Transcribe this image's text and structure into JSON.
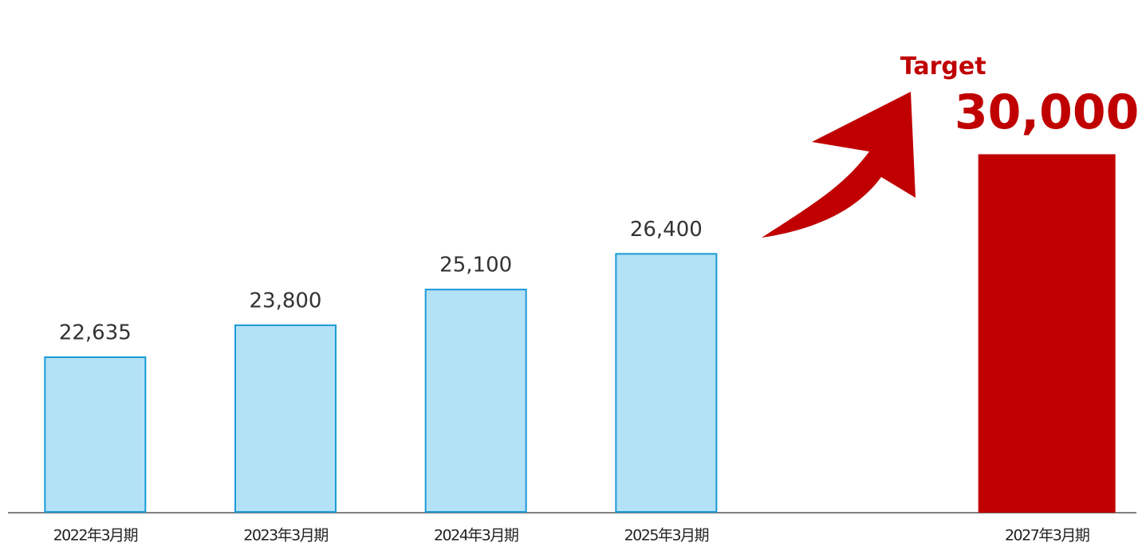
{
  "chart_data": {
    "type": "bar",
    "categories": [
      "2022年3月期",
      "2023年3月期",
      "2024年3月期",
      "2025年3月期",
      null,
      "2027年3月期"
    ],
    "values": [
      22635,
      23800,
      25100,
      26400,
      null,
      30000
    ],
    "value_labels": [
      "22,635",
      "23,800",
      "25,100",
      "26,400",
      null,
      "30,000"
    ],
    "colors": [
      "#b3e1f6",
      "#b3e1f6",
      "#b3e1f6",
      "#b3e1f6",
      null,
      "#c00000"
    ],
    "edge_colors": [
      "#1a9ad6",
      "#1a9ad6",
      "#1a9ad6",
      "#1a9ad6",
      null,
      "#c00000"
    ],
    "annotation": "Target",
    "ylim": [
      17000,
      31000
    ]
  }
}
